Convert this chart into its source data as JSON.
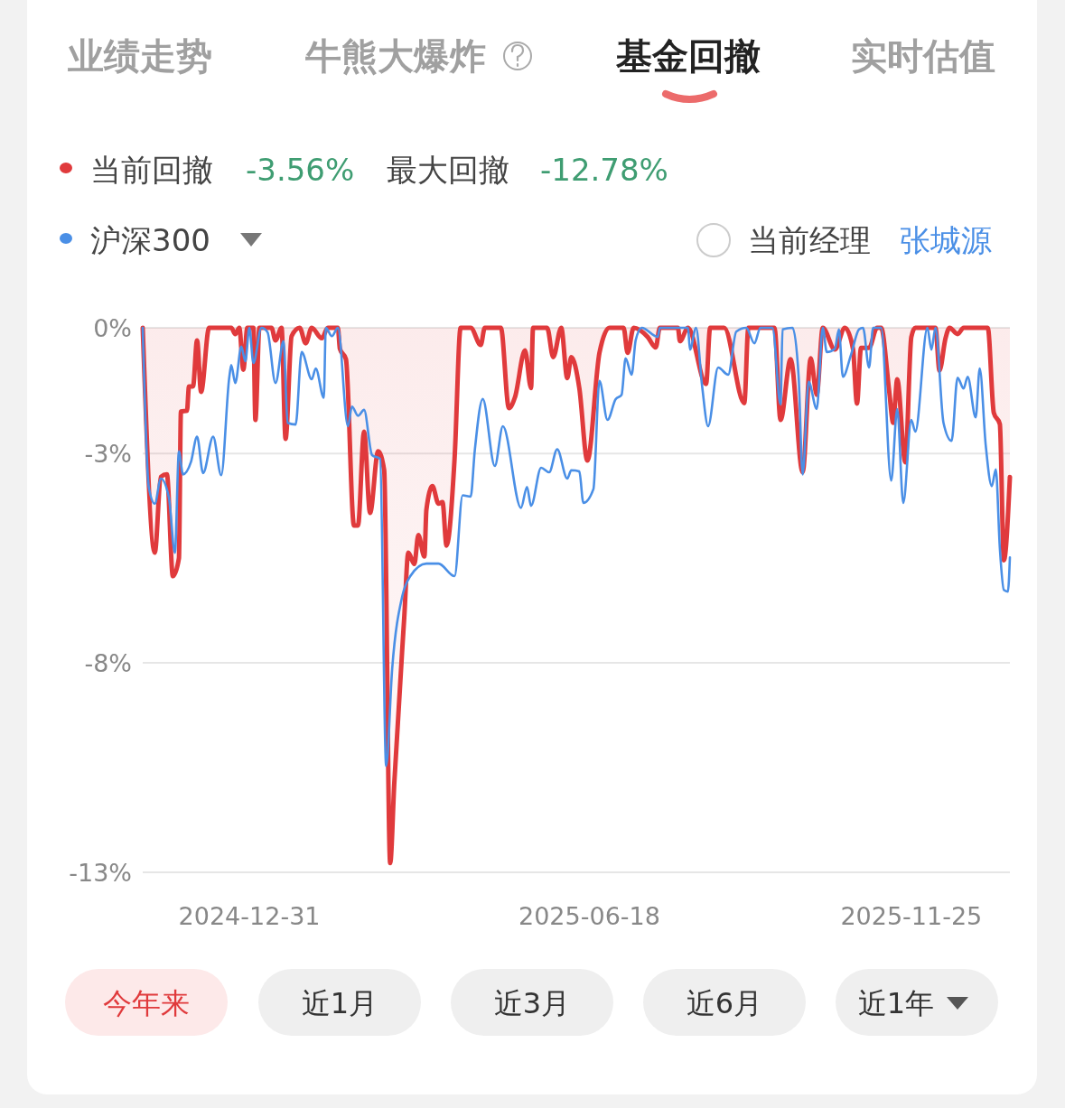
{
  "chart_data": {
    "type": "line",
    "legend": "top left",
    "grid": "y",
    "marker": "none",
    "line_style": "solid",
    "annotations": [
      "业绩走势",
      "牛熊大爆炸",
      "基金回撤",
      "实时估值",
      "-3.56%",
      "最大回撤",
      "-12.78%",
      "当前经理",
      "张城源",
      "今年来",
      "近1月",
      "近3月",
      "近6月",
      "近1年"
    ],
    "xlim": [
      "2024-11-08",
      "2026-01-13"
    ],
    "xticks": [
      "2024-12-31",
      "2025-06-18",
      "2025-11-25"
    ],
    "ylim": [
      -13,
      0
    ],
    "yticks": [
      {
        "value": 0,
        "label": "0%"
      },
      {
        "value": -3,
        "label": "-3%"
      },
      {
        "value": -8,
        "label": "-8%"
      },
      {
        "value": -13,
        "label": "-13%"
      }
    ],
    "series": [
      {
        "name": "当前回撤",
        "type": "area",
        "color": "#e03a3c",
        "x": [
          "2024-11-08",
          "2024-11-14",
          "2024-11-17",
          "2024-11-20",
          "2024-11-23",
          "2024-11-26",
          "2024-11-27",
          "2024-11-30",
          "2024-12-01",
          "2024-12-03",
          "2024-12-05",
          "2024-12-07",
          "2024-12-11",
          "2024-12-22",
          "2024-12-24",
          "2024-12-26",
          "2024-12-28",
          "2024-12-30",
          "2025-01-02",
          "2025-01-03",
          "2025-01-05",
          "2025-01-11",
          "2025-01-13",
          "2025-01-16",
          "2025-01-18",
          "2025-01-21",
          "2025-01-25",
          "2025-01-28",
          "2025-01-31",
          "2025-02-05",
          "2025-02-08",
          "2025-02-13",
          "2025-02-14",
          "2025-02-17",
          "2025-02-21",
          "2025-02-23",
          "2025-02-26",
          "2025-03-01",
          "2025-03-05",
          "2025-03-08",
          "2025-03-11",
          "2025-03-13",
          "2025-03-18",
          "2025-03-20",
          "2025-03-23",
          "2025-03-25",
          "2025-03-28",
          "2025-03-29",
          "2025-04-01",
          "2025-04-04",
          "2025-04-06",
          "2025-04-08",
          "2025-04-12",
          "2025-04-15",
          "2025-04-20",
          "2025-04-25",
          "2025-04-27",
          "2025-05-05",
          "2025-05-09",
          "2025-05-12",
          "2025-05-17",
          "2025-05-20",
          "2025-05-21",
          "2025-05-28",
          "2025-05-31",
          "2025-06-04",
          "2025-06-07",
          "2025-06-09",
          "2025-06-13",
          "2025-06-17",
          "2025-06-23",
          "2025-06-28",
          "2025-07-05",
          "2025-07-07",
          "2025-07-10",
          "2025-07-17",
          "2025-07-21",
          "2025-07-23",
          "2025-08-01",
          "2025-08-02",
          "2025-08-06",
          "2025-08-15",
          "2025-08-17",
          "2025-08-24",
          "2025-09-03",
          "2025-09-05",
          "2025-09-18",
          "2025-09-21",
          "2025-09-26",
          "2025-10-02",
          "2025-10-06",
          "2025-10-09",
          "2025-10-12",
          "2025-10-18",
          "2025-10-23",
          "2025-10-27",
          "2025-10-29",
          "2025-10-31",
          "2025-11-04",
          "2025-11-08",
          "2025-11-10",
          "2025-11-14",
          "2025-11-16",
          "2025-11-18",
          "2025-11-22",
          "2025-11-25",
          "2025-11-27",
          "2025-12-07",
          "2025-12-09",
          "2025-12-12",
          "2025-12-14",
          "2025-12-18",
          "2025-12-21",
          "2026-01-02",
          "2026-01-05",
          "2026-01-08",
          "2026-01-10",
          "2026-01-13"
        ],
        "values": [
          0,
          -5.37,
          -3.56,
          -3.5,
          -5.93,
          -5.5,
          -2.0,
          -1.98,
          -1.4,
          -1.4,
          -0.3,
          -1.53,
          0,
          0,
          -0.15,
          0,
          -1.0,
          0,
          0,
          -2.2,
          0,
          0,
          -0.3,
          0,
          -2.65,
          -0.2,
          0,
          -0.37,
          0,
          -0.25,
          0,
          0,
          -0.5,
          -0.75,
          -4.72,
          -4.72,
          -2.48,
          -4.42,
          -2.95,
          -3.4,
          -12.78,
          -10.9,
          -6.9,
          -5.37,
          -5.64,
          -4.95,
          -5.46,
          -4.34,
          -3.78,
          -4.2,
          -4.16,
          -5.2,
          -3.12,
          0,
          0,
          -0.41,
          0,
          0,
          -1.92,
          -1.66,
          -0.54,
          -1.44,
          0,
          0,
          -0.7,
          0,
          -1.2,
          -0.7,
          -1.44,
          -3.17,
          -0.6,
          0,
          0,
          -0.6,
          0,
          -0.22,
          -0.47,
          0,
          0,
          -0.32,
          0,
          -1.34,
          0,
          0,
          -1.8,
          0,
          0,
          -2.2,
          -0.75,
          -3.45,
          -0.73,
          -1.6,
          0,
          -0.52,
          0,
          -0.5,
          -1.81,
          -0.48,
          -0.48,
          0,
          0,
          -1.51,
          -2.27,
          -1.23,
          -3.21,
          -0.22,
          0,
          0,
          -1.02,
          -0.25,
          0,
          -0.15,
          0,
          0,
          -2.03,
          -2.3,
          -5.55,
          -3.56
        ]
      },
      {
        "name": "沪深300",
        "color": "#4a8fe6",
        "x": [
          "2024-11-08",
          "2024-11-11",
          "2024-11-14",
          "2024-11-17",
          "2024-11-21",
          "2024-11-24",
          "2024-11-26",
          "2024-11-28",
          "2024-12-02",
          "2024-12-05",
          "2024-12-08",
          "2024-12-13",
          "2024-12-17",
          "2024-12-21",
          "2024-12-22",
          "2024-12-24",
          "2024-12-27",
          "2024-12-29",
          "2024-12-31",
          "2025-01-02",
          "2025-01-06",
          "2025-01-09",
          "2025-01-13",
          "2025-01-17",
          "2025-01-19",
          "2025-01-23",
          "2025-01-26",
          "2025-01-31",
          "2025-02-02",
          "2025-02-06",
          "2025-02-07",
          "2025-02-10",
          "2025-02-13",
          "2025-02-18",
          "2025-02-20",
          "2025-02-23",
          "2025-02-26",
          "2025-03-02",
          "2025-03-06",
          "2025-03-09",
          "2025-03-12",
          "2025-03-17",
          "2025-03-21",
          "2025-03-29",
          "2025-04-04",
          "2025-04-12",
          "2025-04-16",
          "2025-04-20",
          "2025-04-22",
          "2025-04-26",
          "2025-05-02",
          "2025-05-06",
          "2025-05-15",
          "2025-05-18",
          "2025-05-20",
          "2025-05-25",
          "2025-05-29",
          "2025-06-02",
          "2025-06-07",
          "2025-06-09",
          "2025-06-13",
          "2025-06-15",
          "2025-06-20",
          "2025-06-23",
          "2025-06-27",
          "2025-07-01",
          "2025-07-04",
          "2025-07-06",
          "2025-07-09",
          "2025-07-11",
          "2025-07-14",
          "2025-07-22",
          "2025-07-23",
          "2025-08-06",
          "2025-08-07",
          "2025-08-10",
          "2025-08-13",
          "2025-08-16",
          "2025-08-21",
          "2025-08-26",
          "2025-08-30",
          "2025-09-04",
          "2025-09-08",
          "2025-09-11",
          "2025-09-17",
          "2025-09-21",
          "2025-09-22",
          "2025-09-27",
          "2025-09-30",
          "2025-10-02",
          "2025-10-05",
          "2025-10-09",
          "2025-10-12",
          "2025-10-14",
          "2025-10-18",
          "2025-10-20",
          "2025-10-22",
          "2025-10-26",
          "2025-10-30",
          "2025-11-01",
          "2025-11-04",
          "2025-11-06",
          "2025-11-10",
          "2025-11-15",
          "2025-11-18",
          "2025-11-21",
          "2025-11-25",
          "2025-11-27",
          "2025-12-03",
          "2025-12-05",
          "2025-12-07",
          "2025-12-11",
          "2025-12-15",
          "2025-12-18",
          "2025-12-21",
          "2025-12-23",
          "2025-12-27",
          "2025-12-29",
          "2026-01-01",
          "2026-01-04",
          "2026-01-06",
          "2026-01-08",
          "2026-01-10",
          "2026-01-12",
          "2026-01-13"
        ],
        "values": [
          0,
          -3.8,
          -4.2,
          -3.6,
          -4.05,
          -5.37,
          -2.95,
          -3.5,
          -3.2,
          -2.6,
          -3.47,
          -2.6,
          -3.52,
          -1.19,
          -0.89,
          -1.32,
          -0.45,
          -0.8,
          0,
          -0.84,
          0,
          -0.1,
          -1.32,
          -0.32,
          -2.27,
          -2.31,
          -0.58,
          -1.23,
          -0.97,
          -1.67,
          0,
          -0.2,
          0,
          -2.35,
          -1.88,
          -2.1,
          -1.96,
          -3.04,
          -3.13,
          -10.46,
          -8.13,
          -6.41,
          -5.93,
          -5.63,
          -5.63,
          -5.93,
          -4.0,
          -4.03,
          -2.95,
          -1.7,
          -3.3,
          -2.35,
          -4.3,
          -3.8,
          -4.25,
          -3.34,
          -3.45,
          -2.9,
          -3.6,
          -3.4,
          -3.43,
          -4.18,
          -3.85,
          -1.27,
          -2.2,
          -1.71,
          -1.6,
          -0.73,
          -1.12,
          -0.3,
          0,
          -0.22,
          0,
          0,
          -0.52,
          0,
          -1.38,
          -2.35,
          -0.95,
          -1.12,
          -0.09,
          0,
          -0.37,
          0,
          0,
          -1.83,
          -0.04,
          0,
          -1.17,
          -3.5,
          -1.29,
          -1.94,
          0,
          -0.58,
          -0.5,
          -0.04,
          -1.17,
          -0.65,
          -0.04,
          0,
          -0.95,
          0,
          0,
          -3.65,
          -1.94,
          -4.18,
          -2.2,
          -2.48,
          0,
          -0.52,
          0,
          -2.27,
          -2.7,
          -1.19,
          -1.45,
          -1.17,
          -2.14,
          -0.97,
          -2.81,
          -3.78,
          -3.38,
          -5.26,
          -6.26,
          -6.3,
          -5.48
        ]
      }
    ]
  }
}
